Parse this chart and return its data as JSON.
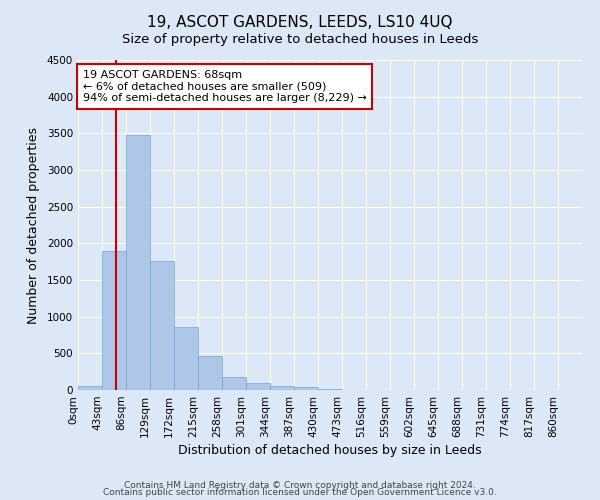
{
  "title": "19, ASCOT GARDENS, LEEDS, LS10 4UQ",
  "subtitle": "Size of property relative to detached houses in Leeds",
  "xlabel": "Distribution of detached houses by size in Leeds",
  "ylabel": "Number of detached properties",
  "bin_labels": [
    "0sqm",
    "43sqm",
    "86sqm",
    "129sqm",
    "172sqm",
    "215sqm",
    "258sqm",
    "301sqm",
    "344sqm",
    "387sqm",
    "430sqm",
    "473sqm",
    "516sqm",
    "559sqm",
    "602sqm",
    "645sqm",
    "688sqm",
    "731sqm",
    "774sqm",
    "817sqm",
    "860sqm"
  ],
  "bar_heights": [
    50,
    1900,
    3480,
    1760,
    860,
    460,
    175,
    95,
    55,
    35,
    20,
    0,
    0,
    0,
    0,
    0,
    0,
    0,
    0,
    0
  ],
  "bar_color": "#aec6e8",
  "bar_edge_color": "#6aaad4",
  "vline_x": 1.58,
  "vline_color": "#cc0000",
  "ylim": [
    0,
    4500
  ],
  "yticks": [
    0,
    500,
    1000,
    1500,
    2000,
    2500,
    3000,
    3500,
    4000,
    4500
  ],
  "annotation_title": "19 ASCOT GARDENS: 68sqm",
  "annotation_line1": "← 6% of detached houses are smaller (509)",
  "annotation_line2": "94% of semi-detached houses are larger (8,229) →",
  "annotation_box_facecolor": "#ffffff",
  "annotation_box_edge": "#cc0000",
  "footer_line1": "Contains HM Land Registry data © Crown copyright and database right 2024.",
  "footer_line2": "Contains public sector information licensed under the Open Government Licence v3.0.",
  "background_color": "#dce8f5",
  "plot_background": "#dce8f5",
  "grid_color": "#ffffff",
  "title_fontsize": 11,
  "subtitle_fontsize": 9.5,
  "axis_label_fontsize": 9,
  "tick_fontsize": 7.5,
  "footer_fontsize": 6.5,
  "annotation_fontsize": 8
}
